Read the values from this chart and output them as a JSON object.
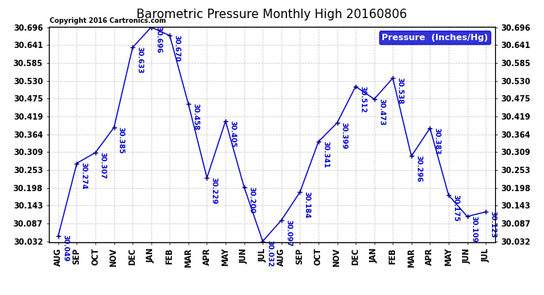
{
  "title": "Barometric Pressure Monthly High 20160806",
  "copyright": "Copyright 2016 Cartronics.com",
  "legend_label": "Pressure  (Inches/Hg)",
  "x_labels": [
    "AUG",
    "SEP",
    "OCT",
    "NOV",
    "DEC",
    "JAN",
    "FEB",
    "MAR",
    "APR",
    "MAY",
    "JUN",
    "JUL",
    "AUG",
    "SEP",
    "OCT",
    "NOV",
    "DEC",
    "JAN",
    "FEB",
    "MAR",
    "APR",
    "MAY",
    "JUN",
    "JUL"
  ],
  "y_values": [
    30.049,
    30.274,
    30.307,
    30.385,
    30.633,
    30.696,
    30.67,
    30.458,
    30.229,
    30.405,
    30.2,
    30.032,
    30.097,
    30.184,
    30.341,
    30.399,
    30.512,
    30.473,
    30.538,
    30.296,
    30.383,
    30.175,
    30.109,
    30.123
  ],
  "line_color": "#0000CD",
  "marker_symbol": "+",
  "marker_color": "#000080",
  "text_color": "#0000CD",
  "background_color": "#ffffff",
  "grid_color": "#c8c8c8",
  "ylim": [
    30.032,
    30.696
  ],
  "yticks": [
    30.032,
    30.087,
    30.143,
    30.198,
    30.253,
    30.309,
    30.364,
    30.419,
    30.475,
    30.53,
    30.585,
    30.641,
    30.696
  ],
  "title_fontsize": 11,
  "annotation_fontsize": 6.5,
  "axis_fontsize": 7,
  "legend_fontsize": 8,
  "legend_bg_color": "#0000CD",
  "legend_text_color": "#ffffff"
}
